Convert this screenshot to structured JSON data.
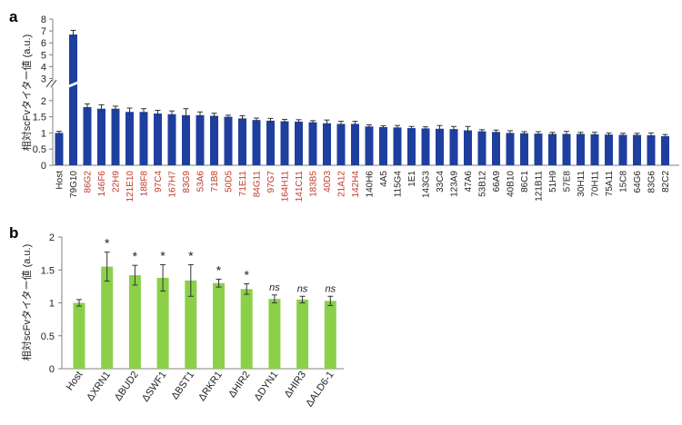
{
  "colors": {
    "bar_a": "#1f3f9f",
    "bar_b": "#8cd04a",
    "label_red": "#c0392b",
    "label_black": "#222222",
    "axis": "#808080"
  },
  "chart_data": [
    {
      "panel_label": "a",
      "type": "bar",
      "ylabel": "相対scFvタイター値 (a.u.)",
      "ylim": [
        0,
        8
      ],
      "axis_break": {
        "lower_ylim": [
          0,
          2.5
        ],
        "upper_ylim": [
          2.5,
          8
        ],
        "break_marker": "//"
      },
      "yticks": [
        "0",
        "0.5",
        "1",
        "1.5",
        "2",
        "3",
        "4",
        "5",
        "6",
        "7",
        "8"
      ],
      "categories": [
        "Host",
        "79G10",
        "86G2",
        "146F6",
        "22H9",
        "121E10",
        "188F8",
        "97C4",
        "167H7",
        "83G9",
        "53A6",
        "71B8",
        "50D5",
        "71E11",
        "84G11",
        "97G7",
        "164H11",
        "141C11",
        "183B5",
        "40D3",
        "21A12",
        "142H4",
        "140H6",
        "4A5",
        "115G4",
        "1E1",
        "143G3",
        "33C4",
        "123A9",
        "47A6",
        "53B12",
        "66A9",
        "40B10",
        "86C1",
        "121B11",
        "51H9",
        "57E8",
        "30H11",
        "70H11",
        "75A11",
        "15C8",
        "64G6",
        "83G6",
        "82C2"
      ],
      "label_colors": [
        "black",
        "black",
        "red",
        "red",
        "red",
        "red",
        "red",
        "red",
        "red",
        "red",
        "red",
        "red",
        "red",
        "red",
        "red",
        "red",
        "red",
        "red",
        "red",
        "red",
        "red",
        "red",
        "black",
        "black",
        "black",
        "black",
        "black",
        "black",
        "black",
        "black",
        "black",
        "black",
        "black",
        "black",
        "black",
        "black",
        "black",
        "black",
        "black",
        "black",
        "black",
        "black",
        "black",
        "black"
      ],
      "values": [
        1.0,
        6.7,
        1.8,
        1.75,
        1.75,
        1.65,
        1.65,
        1.6,
        1.58,
        1.55,
        1.55,
        1.53,
        1.5,
        1.45,
        1.4,
        1.38,
        1.36,
        1.35,
        1.33,
        1.3,
        1.28,
        1.28,
        1.2,
        1.18,
        1.17,
        1.15,
        1.14,
        1.13,
        1.12,
        1.08,
        1.05,
        1.03,
        1.0,
        0.99,
        0.98,
        0.97,
        0.97,
        0.97,
        0.96,
        0.95,
        0.94,
        0.94,
        0.93,
        0.9
      ],
      "errors": [
        0.05,
        0.35,
        0.1,
        0.12,
        0.08,
        0.12,
        0.1,
        0.1,
        0.1,
        0.2,
        0.1,
        0.08,
        0.05,
        0.08,
        0.06,
        0.07,
        0.06,
        0.06,
        0.05,
        0.1,
        0.08,
        0.08,
        0.05,
        0.04,
        0.06,
        0.05,
        0.05,
        0.1,
        0.08,
        0.12,
        0.05,
        0.06,
        0.07,
        0.05,
        0.06,
        0.05,
        0.08,
        0.05,
        0.06,
        0.05,
        0.05,
        0.05,
        0.07,
        0.05
      ]
    },
    {
      "panel_label": "b",
      "type": "bar",
      "ylabel": "相対scFvタイター値 (a.u.)",
      "ylim": [
        0,
        2
      ],
      "yticks": [
        "0",
        "0.5",
        "1",
        "1.5",
        "2"
      ],
      "categories": [
        "Host",
        "ΔXRN1",
        "ΔBUD2",
        "ΔSWF1",
        "ΔBST1",
        "ΔRKR1",
        "ΔHIR2",
        "ΔDYN1",
        "ΔHIR3",
        "ΔALD6-1"
      ],
      "values": [
        1.0,
        1.55,
        1.42,
        1.38,
        1.34,
        1.3,
        1.21,
        1.06,
        1.05,
        1.03
      ],
      "errors": [
        0.05,
        0.22,
        0.15,
        0.2,
        0.24,
        0.06,
        0.08,
        0.06,
        0.05,
        0.07
      ],
      "annotations": [
        "",
        "*",
        "*",
        "*",
        "*",
        "*",
        "*",
        "ns",
        "ns",
        "ns"
      ]
    }
  ]
}
